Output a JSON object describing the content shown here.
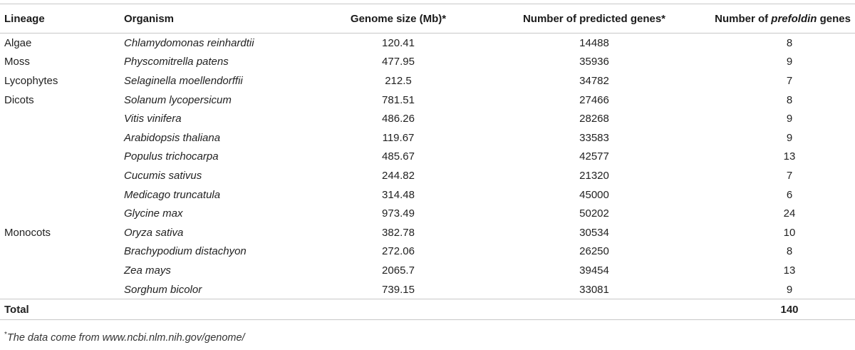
{
  "headers": {
    "lineage": "Lineage",
    "organism": "Organism",
    "genome_size": "Genome size (Mb)*",
    "predicted_genes": "Number of predicted genes*",
    "prefoldin_prefix": "Number of ",
    "prefoldin_italic": "prefoldin",
    "prefoldin_suffix": " genes"
  },
  "rows": [
    {
      "lineage": "Algae",
      "organism": "Chlamydomonas reinhardtii",
      "genome_size": "120.41",
      "predicted_genes": "14488",
      "prefoldin_genes": "8"
    },
    {
      "lineage": "Moss",
      "organism": "Physcomitrella patens",
      "genome_size": "477.95",
      "predicted_genes": "35936",
      "prefoldin_genes": "9"
    },
    {
      "lineage": "Lycophytes",
      "organism": "Selaginella moellendorffii",
      "genome_size": "212.5",
      "predicted_genes": "34782",
      "prefoldin_genes": "7"
    },
    {
      "lineage": "Dicots",
      "organism": "Solanum lycopersicum",
      "genome_size": "781.51",
      "predicted_genes": "27466",
      "prefoldin_genes": "8"
    },
    {
      "lineage": "",
      "organism": "Vitis vinifera",
      "genome_size": "486.26",
      "predicted_genes": "28268",
      "prefoldin_genes": "9"
    },
    {
      "lineage": "",
      "organism": "Arabidopsis thaliana",
      "genome_size": "119.67",
      "predicted_genes": "33583",
      "prefoldin_genes": "9"
    },
    {
      "lineage": "",
      "organism": "Populus trichocarpa",
      "genome_size": "485.67",
      "predicted_genes": "42577",
      "prefoldin_genes": "13"
    },
    {
      "lineage": "",
      "organism": "Cucumis sativus",
      "genome_size": "244.82",
      "predicted_genes": "21320",
      "prefoldin_genes": "7"
    },
    {
      "lineage": "",
      "organism": "Medicago truncatula",
      "genome_size": "314.48",
      "predicted_genes": "45000",
      "prefoldin_genes": "6"
    },
    {
      "lineage": "",
      "organism": "Glycine max",
      "genome_size": "973.49",
      "predicted_genes": "50202",
      "prefoldin_genes": "24"
    },
    {
      "lineage": "Monocots",
      "organism": "Oryza sativa",
      "genome_size": "382.78",
      "predicted_genes": "30534",
      "prefoldin_genes": "10"
    },
    {
      "lineage": "",
      "organism": "Brachypodium distachyon",
      "genome_size": "272.06",
      "predicted_genes": "26250",
      "prefoldin_genes": "8"
    },
    {
      "lineage": "",
      "organism": "Zea mays",
      "genome_size": "2065.7",
      "predicted_genes": "39454",
      "prefoldin_genes": "13"
    },
    {
      "lineage": "",
      "organism": "Sorghum bicolor",
      "genome_size": "739.15",
      "predicted_genes": "33081",
      "prefoldin_genes": "9"
    }
  ],
  "total": {
    "label": "Total",
    "prefoldin_genes": "140"
  },
  "footnote": {
    "mark": "*",
    "text": "The data come from www.ncbi.nlm.nih.gov/genome/"
  }
}
